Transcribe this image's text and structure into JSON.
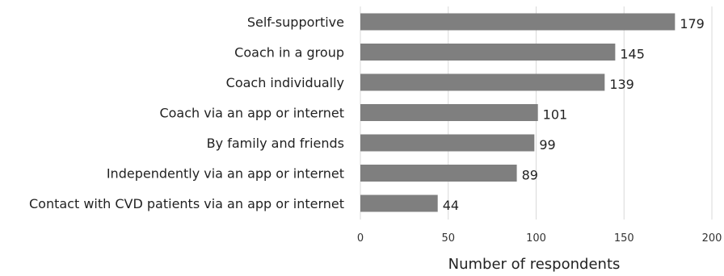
{
  "chart_data": {
    "type": "bar",
    "orientation": "horizontal",
    "categories": [
      "Self-supportive",
      "Coach in a group",
      "Coach individually",
      "Coach via an app or internet",
      "By family and friends",
      "Independently via an app or internet",
      "Contact with CVD patients via an app or internet"
    ],
    "values": [
      179,
      145,
      139,
      101,
      99,
      89,
      44
    ],
    "xlabel": "Number of respondents",
    "ylabel": "",
    "xlim": [
      0,
      200
    ],
    "xticks": [
      0,
      50,
      100,
      150,
      200
    ],
    "grid": "vertical",
    "bar_color": "#7f7f7f",
    "grid_color": "#d9d9d9"
  }
}
